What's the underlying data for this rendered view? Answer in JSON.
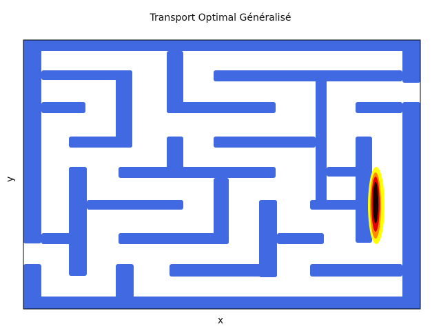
{
  "figure": {
    "title": "Transport Optimal Généralisé",
    "xlabel": "x",
    "ylabel": "y"
  },
  "colors": {
    "wall": "#4169e1",
    "path": "#ffffff",
    "frame": "#000000",
    "heat_low": "#ffff00",
    "heat_mid": "#ff2000",
    "heat_high": "#000000"
  },
  "chart_data": {
    "type": "heatmap",
    "title": "Transport Optimal Généralisé",
    "xlabel": "x",
    "ylabel": "y",
    "grid": false,
    "legend": "none",
    "colormap": "hot (yellow → red → black)",
    "background": "maze (blue walls, white corridors)",
    "hotspot": {
      "location": "right corridor, middle height",
      "peak_value": "max",
      "colors": [
        "yellow",
        "red",
        "black"
      ]
    }
  }
}
